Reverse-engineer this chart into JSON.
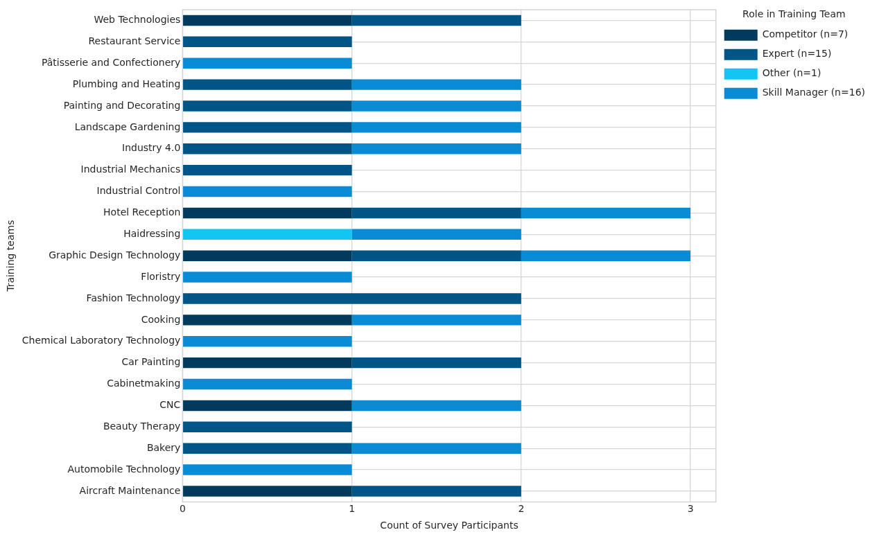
{
  "chart_data": {
    "type": "bar",
    "orientation": "horizontal",
    "stacked": true,
    "xlabel": "Count of Survey Participants",
    "ylabel": "Training teams",
    "legend_title": "Role in Training Team",
    "legend": "top right",
    "grid": true,
    "xlim": [
      0,
      3.15
    ],
    "xticks": [
      0,
      1,
      2,
      3
    ],
    "categories": [
      "Web Technologies",
      "Restaurant Service",
      "Pâtisserie and Confectionery",
      "Plumbing and Heating",
      "Painting and Decorating",
      "Landscape Gardening",
      "Industry 4.0",
      "Industrial Mechanics",
      "Industrial Control",
      "Hotel Reception",
      "Haidressing",
      "Graphic Design Technology",
      "Floristry",
      "Fashion Technology",
      "Cooking",
      "Chemical Laboratory Technology",
      "Car Painting",
      "Cabinetmaking",
      "CNC",
      "Beauty Therapy",
      "Bakery",
      "Automobile Technology",
      "Aircraft Maintenance"
    ],
    "series": [
      {
        "name": "Competitor (n=7)",
        "color": "#003a5c",
        "values": [
          1,
          null,
          null,
          null,
          null,
          null,
          null,
          null,
          null,
          1,
          null,
          1,
          null,
          null,
          1,
          null,
          1,
          null,
          1,
          null,
          null,
          null,
          1
        ]
      },
      {
        "name": "Expert (n=15)",
        "color": "#005587",
        "values": [
          1,
          1,
          null,
          1,
          1,
          1,
          1,
          1,
          null,
          1,
          null,
          1,
          null,
          2,
          null,
          null,
          1,
          null,
          null,
          1,
          1,
          null,
          1
        ]
      },
      {
        "name": "Other (n=1)",
        "color": "#12c5f2",
        "values": [
          null,
          null,
          null,
          null,
          null,
          null,
          null,
          null,
          null,
          null,
          1,
          null,
          null,
          null,
          null,
          null,
          null,
          null,
          null,
          null,
          null,
          null,
          null
        ]
      },
      {
        "name": "Skill Manager (n=16)",
        "color": "#0a8bd6",
        "values": [
          null,
          null,
          1,
          1,
          1,
          1,
          1,
          null,
          1,
          1,
          1,
          1,
          1,
          null,
          1,
          1,
          null,
          1,
          1,
          null,
          1,
          1,
          null
        ]
      }
    ]
  }
}
